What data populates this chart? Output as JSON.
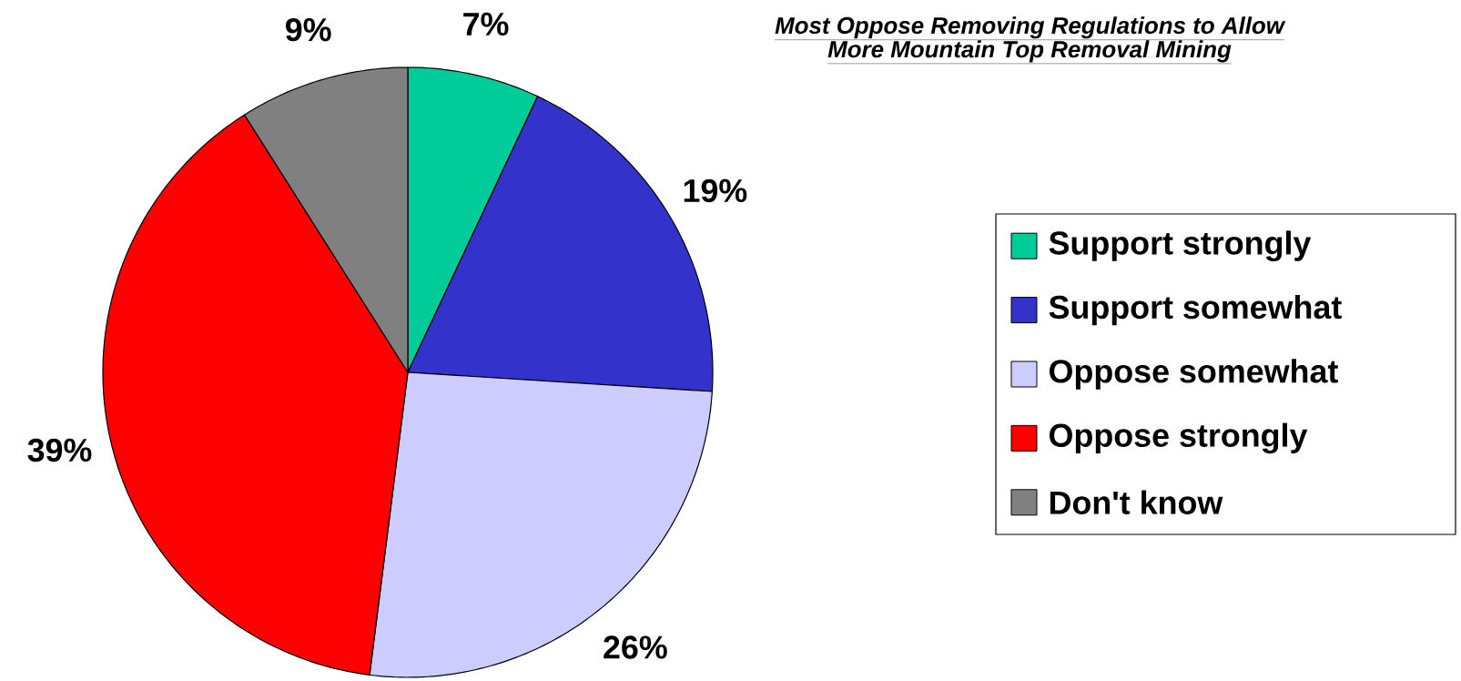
{
  "chart_data": {
    "type": "pie",
    "title": "Most Oppose Removing Regulations to Allow\nMore Mountain Top Removal Mining",
    "categories": [
      "Support strongly",
      "Support somewhat",
      "Oppose somewhat",
      "Oppose strongly",
      "Don't know"
    ],
    "values": [
      7,
      19,
      26,
      39,
      9
    ],
    "value_labels": [
      "7%",
      "19%",
      "26%",
      "39%",
      "9%"
    ],
    "colors": [
      "#00cc99",
      "#3333cc",
      "#ccccff",
      "#ff0000",
      "#808080"
    ],
    "legend": "right"
  }
}
